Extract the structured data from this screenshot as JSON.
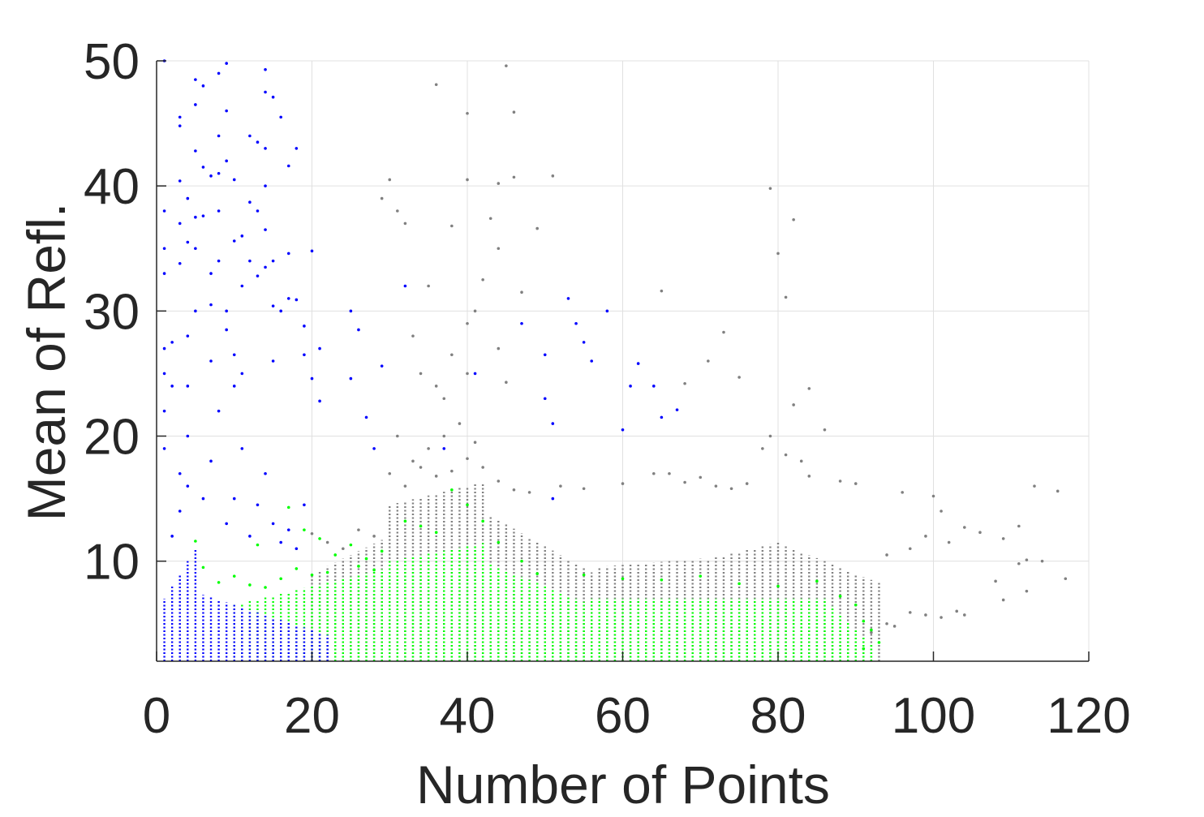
{
  "chart_data": {
    "type": "scatter",
    "title": "",
    "xlabel": "Number of Points",
    "ylabel": "Mean of Refl.",
    "xlim": [
      0,
      120
    ],
    "ylim": [
      2,
      50
    ],
    "xticks": [
      0,
      20,
      40,
      60,
      80,
      100,
      120
    ],
    "yticks": [
      10,
      20,
      30,
      40,
      50
    ],
    "xtick_labels": [
      "0",
      "20",
      "40",
      "60",
      "80",
      "100",
      "120"
    ],
    "ytick_labels": [
      "10",
      "20",
      "30",
      "40",
      "50"
    ],
    "grid": true,
    "legend": "none",
    "colors": {
      "gray": "#808080",
      "green": "#00ff00",
      "blue": "#0000ff",
      "axis": "#262626",
      "grid": "#e0e0e0"
    },
    "series": [
      {
        "color": "#808080",
        "points": [
          [
            36,
            48.1
          ],
          [
            40,
            45.8
          ],
          [
            45,
            49.6
          ],
          [
            46,
            45.9
          ],
          [
            40,
            40.5
          ],
          [
            44,
            40.2
          ],
          [
            46,
            40.7
          ],
          [
            51,
            40.8
          ],
          [
            30,
            40.5
          ],
          [
            29,
            39
          ],
          [
            31,
            38
          ],
          [
            32,
            37
          ],
          [
            43,
            37.4
          ],
          [
            44,
            35
          ],
          [
            38,
            36.8
          ],
          [
            49,
            36.6
          ],
          [
            35,
            32
          ],
          [
            40,
            29
          ],
          [
            42,
            32.5
          ],
          [
            41,
            30
          ],
          [
            47,
            31.5
          ],
          [
            65,
            31.6
          ],
          [
            73,
            28.3
          ],
          [
            80,
            34.6
          ],
          [
            81,
            31.1
          ],
          [
            82,
            37.3
          ],
          [
            79,
            39.8
          ],
          [
            33,
            28
          ],
          [
            34,
            25
          ],
          [
            36,
            24
          ],
          [
            38,
            26.5
          ],
          [
            37,
            23
          ],
          [
            45,
            24.3
          ],
          [
            44,
            27
          ],
          [
            40,
            25
          ],
          [
            71,
            26
          ],
          [
            75,
            24.7
          ],
          [
            68,
            24.2
          ],
          [
            84,
            23.8
          ],
          [
            82,
            22.5
          ],
          [
            86,
            20.5
          ],
          [
            79,
            20
          ],
          [
            78,
            19
          ],
          [
            81,
            18.5
          ],
          [
            83,
            18
          ],
          [
            31,
            20
          ],
          [
            33,
            18
          ],
          [
            35,
            19
          ],
          [
            37,
            20
          ],
          [
            39,
            21
          ],
          [
            41,
            19.5
          ],
          [
            30,
            17
          ],
          [
            32,
            16
          ],
          [
            34,
            17.5
          ],
          [
            36,
            16.8
          ],
          [
            38,
            17.2
          ],
          [
            40,
            18.2
          ],
          [
            42,
            17.5
          ],
          [
            44,
            16.4
          ],
          [
            46,
            15.7
          ],
          [
            48,
            15.5
          ],
          [
            52,
            16
          ],
          [
            55,
            15.8
          ],
          [
            60,
            16.2
          ],
          [
            64,
            17
          ],
          [
            66,
            17
          ],
          [
            68,
            16.3
          ],
          [
            70,
            16.7
          ],
          [
            72,
            16
          ],
          [
            74,
            15.8
          ],
          [
            76,
            16.2
          ],
          [
            84,
            16.8
          ],
          [
            88,
            16.4
          ],
          [
            90,
            16.2
          ],
          [
            96,
            15.5
          ],
          [
            100,
            15.2
          ],
          [
            101,
            14
          ],
          [
            104,
            12.7
          ],
          [
            106,
            12.3
          ],
          [
            109,
            11.8
          ],
          [
            111,
            12.8
          ],
          [
            113,
            16
          ],
          [
            116,
            15.6
          ],
          [
            112,
            10.1
          ],
          [
            114,
            10
          ],
          [
            111,
            9.8
          ],
          [
            117,
            8.6
          ],
          [
            108,
            8.4
          ],
          [
            112,
            7.6
          ],
          [
            109,
            6.9
          ],
          [
            101,
            5.5
          ],
          [
            103,
            6
          ],
          [
            104,
            5.7
          ],
          [
            97,
            5.9
          ],
          [
            99,
            5.7
          ],
          [
            94,
            5
          ],
          [
            95,
            4.8
          ],
          [
            92,
            4.3
          ],
          [
            94,
            10.5
          ],
          [
            97,
            11
          ],
          [
            99,
            12
          ],
          [
            102,
            11.5
          ],
          [
            24,
            11
          ],
          [
            26,
            12.5
          ],
          [
            28,
            12
          ],
          [
            20,
            12.2
          ],
          [
            22,
            11.5
          ]
        ]
      },
      {
        "color": "#00ff00",
        "points": [
          [
            17,
            14.3
          ],
          [
            19,
            12.5
          ],
          [
            21,
            11.8
          ],
          [
            23,
            10.5
          ],
          [
            25,
            11.3
          ],
          [
            27,
            10.2
          ],
          [
            29,
            10.8
          ],
          [
            32,
            13.2
          ],
          [
            34,
            12.8
          ],
          [
            36,
            12.3
          ],
          [
            38,
            15.7
          ],
          [
            40,
            14.5
          ],
          [
            42,
            13.2
          ],
          [
            44,
            11.5
          ],
          [
            47,
            10
          ],
          [
            49,
            9
          ],
          [
            55,
            8.9
          ],
          [
            60,
            8.6
          ],
          [
            65,
            8.5
          ],
          [
            70,
            8.8
          ],
          [
            75,
            8.2
          ],
          [
            80,
            8
          ],
          [
            85,
            8.4
          ],
          [
            88,
            7.2
          ],
          [
            90,
            6.5
          ],
          [
            91,
            5.2
          ],
          [
            92,
            4.5
          ],
          [
            93,
            3.5
          ],
          [
            91,
            3
          ],
          [
            5,
            11.6
          ],
          [
            6,
            9.5
          ],
          [
            8,
            8.3
          ],
          [
            10,
            8.8
          ],
          [
            12,
            8.1
          ],
          [
            14,
            7.9
          ],
          [
            16,
            8.6
          ],
          [
            18,
            9.4
          ],
          [
            20,
            8.9
          ],
          [
            22,
            9.1
          ],
          [
            26,
            9.6
          ],
          [
            28,
            9.3
          ],
          [
            13,
            11.3
          ]
        ]
      },
      {
        "color": "#0000ff",
        "points": [
          [
            1,
            50
          ],
          [
            1,
            38
          ],
          [
            1,
            35
          ],
          [
            1,
            33
          ],
          [
            1,
            27
          ],
          [
            1,
            25
          ],
          [
            1,
            22
          ],
          [
            1,
            19
          ],
          [
            2,
            24
          ],
          [
            2,
            27.5
          ],
          [
            3,
            45.5
          ],
          [
            3,
            44.8
          ],
          [
            3,
            40.4
          ],
          [
            3,
            37
          ],
          [
            3,
            33.8
          ],
          [
            4,
            39
          ],
          [
            4,
            35.5
          ],
          [
            4,
            28
          ],
          [
            4,
            24
          ],
          [
            5,
            48.5
          ],
          [
            5,
            46.5
          ],
          [
            5,
            42.8
          ],
          [
            5,
            37.5
          ],
          [
            5,
            35
          ],
          [
            5,
            30
          ],
          [
            6,
            41.5
          ],
          [
            6,
            48
          ],
          [
            6,
            37.6
          ],
          [
            7,
            40.8
          ],
          [
            7,
            33
          ],
          [
            7,
            30.5
          ],
          [
            7,
            26
          ],
          [
            8,
            49
          ],
          [
            8,
            44
          ],
          [
            8,
            41
          ],
          [
            8,
            38
          ],
          [
            8,
            34
          ],
          [
            9,
            49.8
          ],
          [
            9,
            46
          ],
          [
            9,
            42
          ],
          [
            9,
            30
          ],
          [
            9,
            28.5
          ],
          [
            10,
            40.5
          ],
          [
            10,
            35.6
          ],
          [
            10,
            26.5
          ],
          [
            10,
            24
          ],
          [
            11,
            36
          ],
          [
            11,
            32
          ],
          [
            11,
            25
          ],
          [
            12,
            44
          ],
          [
            12,
            38.7
          ],
          [
            12,
            34
          ],
          [
            13,
            43.5
          ],
          [
            13,
            38
          ],
          [
            13,
            32.8
          ],
          [
            14,
            49.3
          ],
          [
            14,
            47.5
          ],
          [
            14,
            43
          ],
          [
            14,
            40
          ],
          [
            14,
            36.5
          ],
          [
            14,
            33.5
          ],
          [
            15,
            47.1
          ],
          [
            15,
            34
          ],
          [
            15,
            30.4
          ],
          [
            15,
            26
          ],
          [
            16,
            45.5
          ],
          [
            16,
            30
          ],
          [
            17,
            41.6
          ],
          [
            17,
            34.6
          ],
          [
            17,
            31
          ],
          [
            18,
            43
          ],
          [
            18,
            30.9
          ],
          [
            19,
            28.8
          ],
          [
            19,
            26.5
          ],
          [
            20,
            34.8
          ],
          [
            20,
            24.6
          ],
          [
            21,
            27
          ],
          [
            21,
            22.8
          ],
          [
            25,
            30
          ],
          [
            25,
            24.6
          ],
          [
            26,
            28.5
          ],
          [
            27,
            21.5
          ],
          [
            28,
            19
          ],
          [
            29,
            25.6
          ],
          [
            32,
            32
          ],
          [
            37,
            19
          ],
          [
            41,
            25
          ],
          [
            47,
            29
          ],
          [
            50,
            26.5
          ],
          [
            50,
            23
          ],
          [
            51,
            21
          ],
          [
            54,
            29
          ],
          [
            55,
            27.5
          ],
          [
            56,
            26
          ],
          [
            58,
            30
          ],
          [
            60,
            20.5
          ],
          [
            61,
            24
          ],
          [
            62,
            25.8
          ],
          [
            64,
            24
          ],
          [
            65,
            21.5
          ],
          [
            67,
            22.1
          ],
          [
            53,
            31
          ],
          [
            51,
            15
          ],
          [
            2,
            12
          ],
          [
            3,
            14
          ],
          [
            3,
            17
          ],
          [
            4,
            16
          ],
          [
            4,
            20
          ],
          [
            6,
            15
          ],
          [
            7,
            18
          ],
          [
            8,
            22
          ],
          [
            9,
            13
          ],
          [
            10,
            15
          ],
          [
            11,
            19
          ],
          [
            12,
            12
          ],
          [
            13,
            14.5
          ],
          [
            14,
            17
          ],
          [
            15,
            13
          ],
          [
            16,
            11.5
          ],
          [
            17,
            12.5
          ],
          [
            18,
            11
          ],
          [
            19,
            14.5
          ]
        ]
      }
    ]
  }
}
